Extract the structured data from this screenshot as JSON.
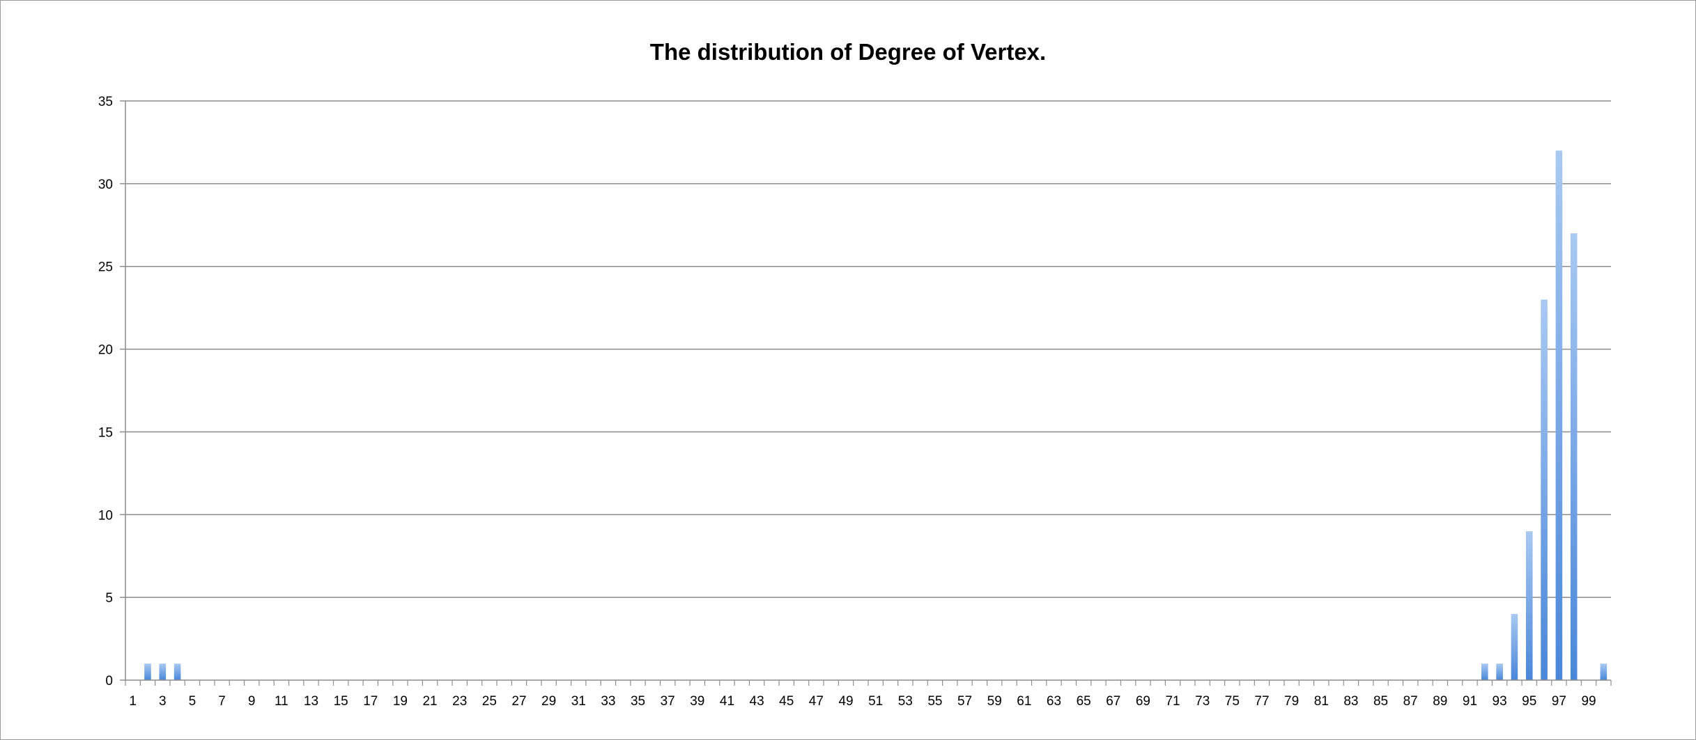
{
  "chart_data": {
    "type": "bar",
    "title": "The distribution of Degree of Vertex.",
    "xlabel": "",
    "ylabel": "",
    "ylim": [
      0,
      35
    ],
    "yticks": [
      0,
      5,
      10,
      15,
      20,
      25,
      30,
      35
    ],
    "grid": true,
    "legend": "none",
    "categories": [
      1,
      2,
      3,
      4,
      5,
      6,
      7,
      8,
      9,
      10,
      11,
      12,
      13,
      14,
      15,
      16,
      17,
      18,
      19,
      20,
      21,
      22,
      23,
      24,
      25,
      26,
      27,
      28,
      29,
      30,
      31,
      32,
      33,
      34,
      35,
      36,
      37,
      38,
      39,
      40,
      41,
      42,
      43,
      44,
      45,
      46,
      47,
      48,
      49,
      50,
      51,
      52,
      53,
      54,
      55,
      56,
      57,
      58,
      59,
      60,
      61,
      62,
      63,
      64,
      65,
      66,
      67,
      68,
      69,
      70,
      71,
      72,
      73,
      74,
      75,
      76,
      77,
      78,
      79,
      80,
      81,
      82,
      83,
      84,
      85,
      86,
      87,
      88,
      89,
      90,
      91,
      92,
      93,
      94,
      95,
      96,
      97,
      98,
      99,
      100
    ],
    "x_tick_labels": [
      "1",
      "3",
      "5",
      "7",
      "9",
      "11",
      "13",
      "15",
      "17",
      "19",
      "21",
      "23",
      "25",
      "27",
      "29",
      "31",
      "33",
      "35",
      "37",
      "39",
      "41",
      "43",
      "45",
      "47",
      "49",
      "51",
      "53",
      "55",
      "57",
      "59",
      "61",
      "63",
      "65",
      "67",
      "69",
      "71",
      "73",
      "75",
      "77",
      "79",
      "81",
      "83",
      "85",
      "87",
      "89",
      "91",
      "93",
      "95",
      "97",
      "99"
    ],
    "values": [
      0,
      1,
      1,
      1,
      0,
      0,
      0,
      0,
      0,
      0,
      0,
      0,
      0,
      0,
      0,
      0,
      0,
      0,
      0,
      0,
      0,
      0,
      0,
      0,
      0,
      0,
      0,
      0,
      0,
      0,
      0,
      0,
      0,
      0,
      0,
      0,
      0,
      0,
      0,
      0,
      0,
      0,
      0,
      0,
      0,
      0,
      0,
      0,
      0,
      0,
      0,
      0,
      0,
      0,
      0,
      0,
      0,
      0,
      0,
      0,
      0,
      0,
      0,
      0,
      0,
      0,
      0,
      0,
      0,
      0,
      0,
      0,
      0,
      0,
      0,
      0,
      0,
      0,
      0,
      0,
      0,
      0,
      0,
      0,
      0,
      0,
      0,
      0,
      0,
      0,
      0,
      1,
      1,
      4,
      9,
      23,
      32,
      27,
      0,
      1
    ],
    "bar_color": "#4a86d9",
    "bar_highlight": "#a9c9f2",
    "gridline_color": "#8c8c8c"
  }
}
